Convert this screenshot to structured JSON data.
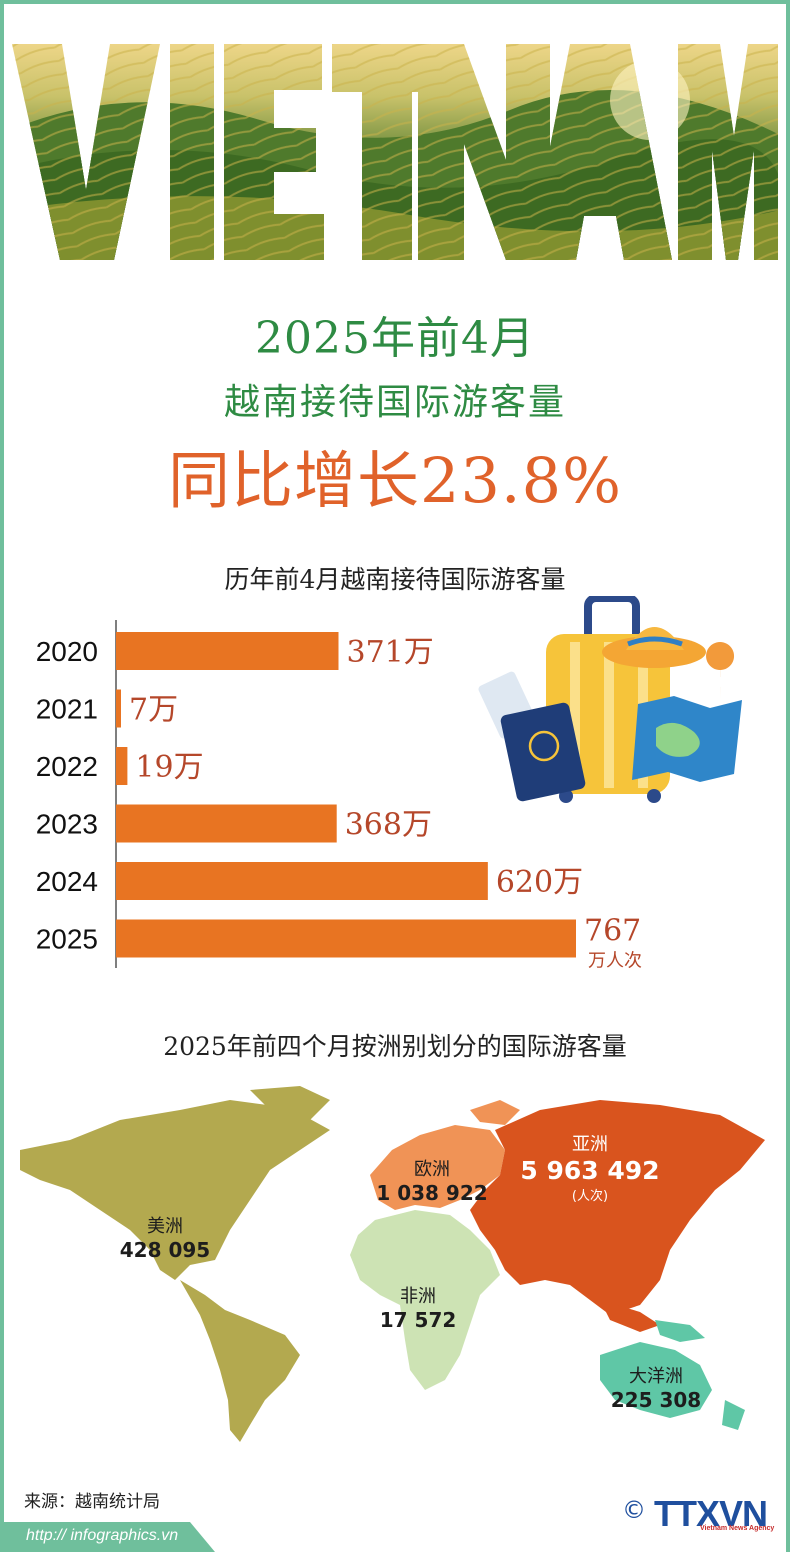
{
  "hero": {
    "title": "VIET NAM"
  },
  "headline": {
    "line1": "2025年前4月",
    "line2": "越南接待国际游客量",
    "line3": "同比增长23.8%"
  },
  "chart": {
    "title": "历年前4月越南接待国际游客量"
  },
  "chart_data": {
    "type": "bar",
    "orientation": "horizontal",
    "title": "历年前4月越南接待国际游客量",
    "categories": [
      "2020",
      "2021",
      "2022",
      "2023",
      "2024",
      "2025"
    ],
    "values": [
      371,
      7,
      19,
      368,
      620,
      767
    ],
    "value_labels": [
      "371万",
      "7万",
      "19万",
      "368万",
      "620万",
      "767"
    ],
    "last_unit_label": "万人次",
    "bar_color": "#e87422",
    "label_color": "#b5472a"
  },
  "map": {
    "title": "2025年前四个月按洲别划分的国际游客量",
    "regions": [
      {
        "name": "美洲",
        "value": "428 095",
        "color": "#b3a94f"
      },
      {
        "name": "欧洲",
        "value": "1 038 922",
        "color": "#f09356"
      },
      {
        "name": "亚洲",
        "value": "5 963 492",
        "unit": "(人次)",
        "color": "#d9541e"
      },
      {
        "name": "非洲",
        "value": "17 572",
        "color": "#cde3b4"
      },
      {
        "name": "大洋洲",
        "value": "225 308",
        "color": "#5fc7a6"
      }
    ]
  },
  "footer": {
    "source": "来源：越南统计局",
    "url": "http:// infographics.vn",
    "logo_symbol": "©",
    "logo_text": "TTXVN",
    "logo_sub": "Vietnam News Agency"
  },
  "colors": {
    "green": "#2e8b43",
    "orange": "#e0622a",
    "frame": "#6fbf9c"
  }
}
